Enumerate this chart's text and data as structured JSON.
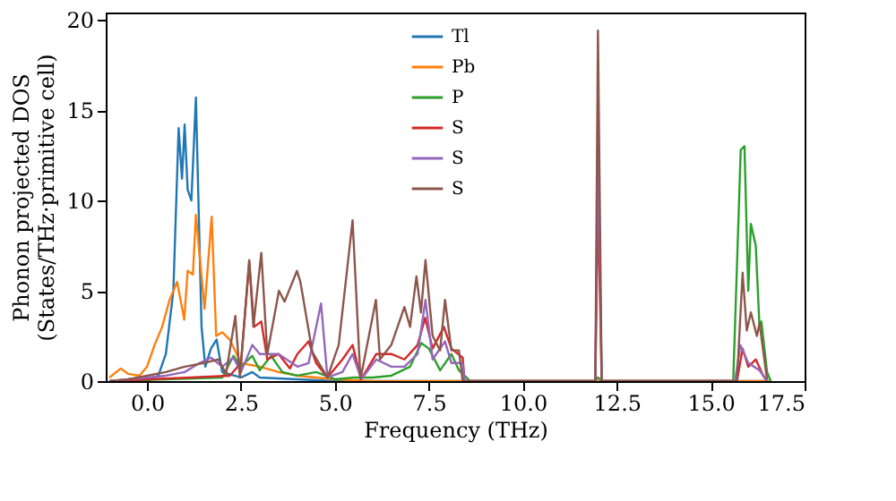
{
  "chart_data": {
    "type": "line",
    "xlabel": "Frequency (THz)",
    "ylabel": "Phonon projected DOS\n(States/THz·primitive cell)",
    "xlim": [
      -1.1,
      17.5
    ],
    "ylim": [
      0,
      20.4
    ],
    "xticks": [
      {
        "value": 0,
        "label": "0.0"
      },
      {
        "value": 2.5,
        "label": "2.5"
      },
      {
        "value": 5,
        "label": "5.0"
      },
      {
        "value": 7.5,
        "label": "7.5"
      },
      {
        "value": 10,
        "label": "10.0"
      },
      {
        "value": 12.5,
        "label": "12.5"
      },
      {
        "value": 15,
        "label": "15.0"
      },
      {
        "value": 17.5,
        "label": "17.5"
      }
    ],
    "yticks": [
      0,
      5,
      10,
      15,
      20
    ],
    "grid": false,
    "legend": "top",
    "line_style": "solid",
    "marker": "none",
    "series": [
      {
        "name": "Tl",
        "color": "#1f77b4",
        "x": [
          -1.0,
          0.0,
          0.3,
          0.5,
          0.7,
          0.84,
          0.93,
          1.0,
          1.08,
          1.18,
          1.3,
          1.45,
          1.55,
          1.7,
          1.85,
          2.0,
          2.5,
          2.8,
          3.0,
          4.0,
          5.0,
          16.6
        ],
        "values": [
          0,
          0,
          0.3,
          1.5,
          5,
          14.0,
          11.2,
          14.2,
          10.6,
          10.0,
          15.7,
          3.0,
          0.8,
          1.8,
          2.3,
          0.5,
          0.2,
          0.5,
          0.2,
          0.1,
          0,
          0
        ]
      },
      {
        "name": "Pb",
        "color": "#ff7f0e",
        "x": [
          -1.0,
          -0.7,
          -0.5,
          -0.2,
          0.0,
          0.2,
          0.4,
          0.6,
          0.8,
          0.99,
          1.08,
          1.22,
          1.3,
          1.53,
          1.72,
          1.84,
          2.0,
          2.2,
          2.5,
          3.0,
          3.5,
          4.0,
          5.0,
          6.0,
          16.6
        ],
        "values": [
          0.2,
          0.7,
          0.4,
          0.3,
          0.8,
          2,
          3,
          4.5,
          5.5,
          3.4,
          6.1,
          5.9,
          9.2,
          4.0,
          9.1,
          2.5,
          2.7,
          2.3,
          1.0,
          0.8,
          0.5,
          0.3,
          0.1,
          0,
          0
        ]
      },
      {
        "name": "P",
        "color": "#2ca02c",
        "x": [
          -1.0,
          2.0,
          2.3,
          2.5,
          2.8,
          3.0,
          3.3,
          3.6,
          4.0,
          4.5,
          5.0,
          5.5,
          6.0,
          6.5,
          7.0,
          7.3,
          7.5,
          7.8,
          8.1,
          8.3,
          8.5,
          8.6,
          11.9,
          12.0,
          12.1,
          15.6,
          15.8,
          15.9,
          16.0,
          16.07,
          16.2,
          16.3,
          16.35,
          16.5,
          16.6
        ],
        "values": [
          0,
          0.2,
          1.4,
          0.8,
          1.4,
          0.6,
          1.4,
          0.5,
          0.3,
          0.5,
          0.1,
          0.2,
          0.2,
          0.3,
          0.8,
          2.1,
          1.8,
          0.6,
          1.5,
          0.6,
          0.2,
          0,
          0,
          0.2,
          0,
          0,
          12.8,
          13.0,
          5,
          8.7,
          7.5,
          3.0,
          3.3,
          0.5,
          0
        ]
      },
      {
        "name": "S",
        "color": "#d62728",
        "x": [
          -1.0,
          2.2,
          2.5,
          2.72,
          2.85,
          3.04,
          3.2,
          3.5,
          3.8,
          4.0,
          4.3,
          4.5,
          4.8,
          5.2,
          5.47,
          5.7,
          6.1,
          6.5,
          6.85,
          7.2,
          7.4,
          7.6,
          7.9,
          8.1,
          8.4,
          8.45,
          11.93,
          12.0,
          12.1,
          15.7,
          15.85,
          16.0,
          16.2,
          16.4,
          16.5
        ],
        "values": [
          0,
          0.3,
          1.0,
          6.6,
          3.0,
          3.3,
          1.2,
          1.5,
          0.7,
          1.5,
          2.2,
          1.0,
          0.2,
          1.2,
          2.0,
          0.1,
          1.5,
          1.5,
          1.2,
          2.0,
          3.5,
          1.8,
          3.0,
          1.8,
          1.3,
          0,
          0,
          10,
          0,
          0,
          1.8,
          0.8,
          1.2,
          0.3,
          0
        ]
      },
      {
        "name": "S",
        "color": "#9467bd",
        "x": [
          -1.0,
          0.5,
          1.0,
          1.4,
          1.7,
          2.0,
          2.3,
          2.5,
          2.8,
          3.0,
          3.5,
          4.0,
          4.3,
          4.63,
          4.8,
          5.2,
          5.47,
          5.7,
          6.1,
          6.5,
          6.85,
          7.2,
          7.41,
          7.6,
          7.93,
          8.1,
          8.4,
          8.45,
          11.93,
          12.0,
          12.1,
          15.65,
          15.79,
          16.0,
          16.3,
          16.5
        ],
        "values": [
          0,
          0.3,
          0.5,
          1.0,
          1.3,
          0.8,
          1.3,
          0.5,
          2.0,
          1.5,
          1.5,
          0.8,
          1.0,
          4.3,
          0.2,
          0.5,
          1.5,
          0.1,
          1.2,
          0.8,
          0.8,
          1.5,
          4.5,
          1.2,
          2.2,
          1.0,
          1.0,
          0,
          0,
          13,
          0,
          0,
          2.0,
          1.0,
          0.6,
          0
        ]
      },
      {
        "name": "S",
        "color": "#8c564b",
        "x": [
          -1.0,
          -0.5,
          0.5,
          1.0,
          1.5,
          1.9,
          2.1,
          2.35,
          2.47,
          2.72,
          2.83,
          3.04,
          3.2,
          3.51,
          3.66,
          3.99,
          4.08,
          4.4,
          4.8,
          5.1,
          5.47,
          5.68,
          6.09,
          6.2,
          6.5,
          6.85,
          7.0,
          7.17,
          7.29,
          7.41,
          7.6,
          7.8,
          7.93,
          8.1,
          8.3,
          8.4,
          11.93,
          12.0,
          12.1,
          15.7,
          15.85,
          15.96,
          16.07,
          16.23,
          16.3,
          16.5
        ],
        "values": [
          0,
          0.1,
          0.5,
          0.8,
          1.0,
          1.2,
          0.4,
          3.6,
          0.2,
          6.7,
          3.0,
          7.1,
          1.5,
          5.0,
          4.4,
          6.1,
          5.5,
          1.6,
          0.2,
          2.0,
          8.9,
          0.1,
          4.5,
          1.2,
          2.0,
          4.1,
          3.0,
          5.8,
          3.8,
          6.7,
          2.5,
          1.7,
          4.5,
          1.7,
          1.7,
          0,
          0,
          19.4,
          0,
          0,
          6.0,
          2.8,
          3.8,
          2.5,
          3.2,
          0.1
        ]
      }
    ]
  }
}
